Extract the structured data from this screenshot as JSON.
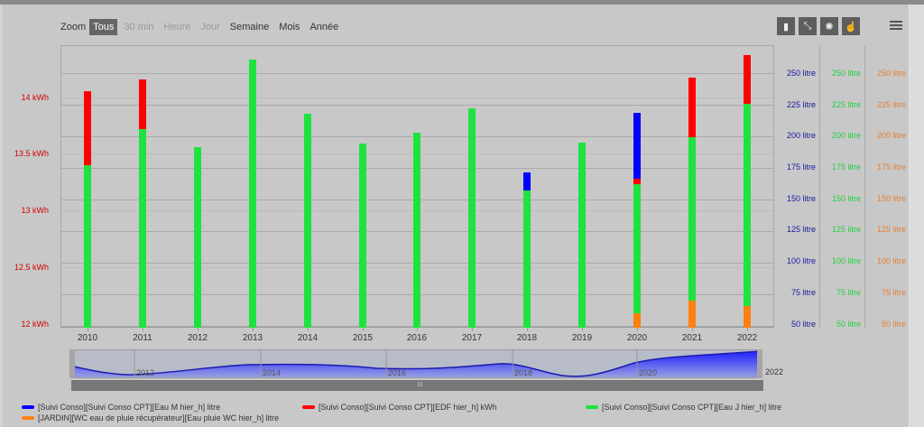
{
  "range_selector": {
    "label": "Zoom",
    "buttons": [
      {
        "label": "Tous",
        "state": "active"
      },
      {
        "label": "30 min",
        "state": "disabled"
      },
      {
        "label": "Heure",
        "state": "disabled"
      },
      {
        "label": "Jour",
        "state": "disabled"
      },
      {
        "label": "Semaine",
        "state": "normal"
      },
      {
        "label": "Mois",
        "state": "normal"
      },
      {
        "label": "Année",
        "state": "normal"
      }
    ]
  },
  "toolbar": {
    "icons": [
      "bar-icon",
      "scatter-icon",
      "sun-icon",
      "pointer-hand-icon"
    ],
    "glyphs": [
      "▮",
      "⤡",
      "✺",
      "☝"
    ],
    "menu_icon": "hamburger-menu-icon"
  },
  "colors": {
    "blue": "#0000ff",
    "red": "#ff0000",
    "green": "#1ee33e",
    "orange": "#ff8010",
    "axis_left": "#d40000",
    "axis_blue": "#1a1aa0",
    "axis_green": "#22d040",
    "axis_orange": "#e87f30"
  },
  "axes": {
    "left": [
      "14 kWh",
      "13.5 kWh",
      "13 kWh",
      "12.5 kWh",
      "12 kWh"
    ],
    "right_blue": [
      "250 litre",
      "225 litre",
      "200 litre",
      "175 litre",
      "150 litre",
      "125 litre",
      "100 litre",
      "75 litre",
      "50 litre"
    ],
    "right_green": [
      "250 litre",
      "225 litre",
      "200 litre",
      "175 litre",
      "150 litre",
      "125 litre",
      "100 litre",
      "75 litre",
      "50 litre"
    ],
    "right_orange": [
      "250 litre",
      "225 litre",
      "200 litre",
      "175 litre",
      "150 litre",
      "125 litre",
      "100 litre",
      "75 litre",
      "50 litre"
    ]
  },
  "navigator": {
    "labels": [
      "2012",
      "2014",
      "2016",
      "2018",
      "2020"
    ],
    "end_label": "2022",
    "grip": "III"
  },
  "legend": [
    {
      "label": "[Suivi Conso][Suivi Conso CPT][Eau M hier_h] litre",
      "color": "#0000ff"
    },
    {
      "label": "[Suivi Conso][Suivi Conso CPT][EDF hier_h] kWh",
      "color": "#ff0000"
    },
    {
      "label": "[Suivi Conso][Suivi Conso CPT][Eau J hier_h] litre",
      "color": "#1ee33e"
    },
    {
      "label": "[JARDIN][WC eau de pluie récupérateur][Eau pluie WC hier_h] litre",
      "color": "#ff8010"
    }
  ],
  "chart_data": {
    "type": "bar",
    "stacked_visual": true,
    "categories": [
      "2010",
      "2011",
      "2012",
      "2013",
      "2014",
      "2015",
      "2016",
      "2017",
      "2018",
      "2019",
      "2020",
      "2021",
      "2022"
    ],
    "series": [
      {
        "name": "[Suivi Conso][Suivi Conso CPT][Eau M hier_h] litre",
        "axis": "right_blue",
        "unit": "litre",
        "values": [
          null,
          null,
          null,
          null,
          null,
          null,
          null,
          null,
          171,
          null,
          219,
          null,
          null
        ]
      },
      {
        "name": "[Suivi Conso][Suivi Conso CPT][EDF hier_h] kWh",
        "axis": "left",
        "unit": "kWh",
        "values": [
          14.06,
          14.16,
          null,
          null,
          null,
          null,
          null,
          null,
          null,
          null,
          13.3,
          14.18,
          14.38
        ]
      },
      {
        "name": "[Suivi Conso][Suivi Conso CPT][Eau J hier_h] litre",
        "axis": "right_green",
        "unit": "litre",
        "values": [
          177,
          205,
          190,
          260,
          217,
          193,
          201,
          221,
          156,
          193,
          160,
          198,
          224
        ]
      },
      {
        "name": "[JARDIN][WC eau de pluie récupérateur][Eau pluie WC hier_h] litre",
        "axis": "right_orange",
        "unit": "litre",
        "values": [
          null,
          null,
          null,
          null,
          null,
          null,
          null,
          null,
          null,
          null,
          62,
          72,
          67
        ]
      }
    ],
    "pixel_stacks": [
      {
        "year": "2010",
        "segments": [
          {
            "c": "green",
            "from": 363,
            "to": 183
          },
          {
            "c": "red",
            "from": 183,
            "to": 101
          }
        ]
      },
      {
        "year": "2011",
        "segments": [
          {
            "c": "green",
            "from": 363,
            "to": 143
          },
          {
            "c": "red",
            "from": 143,
            "to": 88
          }
        ]
      },
      {
        "year": "2012",
        "segments": [
          {
            "c": "green",
            "from": 363,
            "to": 163
          }
        ]
      },
      {
        "year": "2013",
        "segments": [
          {
            "c": "green",
            "from": 363,
            "to": 66
          }
        ]
      },
      {
        "year": "2014",
        "segments": [
          {
            "c": "green",
            "from": 363,
            "to": 126
          }
        ]
      },
      {
        "year": "2015",
        "segments": [
          {
            "c": "green",
            "from": 363,
            "to": 159
          }
        ]
      },
      {
        "year": "2016",
        "segments": [
          {
            "c": "green",
            "from": 363,
            "to": 147
          }
        ]
      },
      {
        "year": "2017",
        "segments": [
          {
            "c": "green",
            "from": 363,
            "to": 120
          }
        ]
      },
      {
        "year": "2018",
        "segments": [
          {
            "c": "green",
            "from": 363,
            "to": 211
          },
          {
            "c": "blue",
            "from": 211,
            "to": 191
          }
        ]
      },
      {
        "year": "2019",
        "segments": [
          {
            "c": "green",
            "from": 363,
            "to": 158
          }
        ]
      },
      {
        "year": "2020",
        "segments": [
          {
            "c": "orange",
            "from": 363,
            "to": 347
          },
          {
            "c": "green",
            "from": 347,
            "to": 204
          },
          {
            "c": "red",
            "from": 204,
            "to": 198
          },
          {
            "c": "blue",
            "from": 198,
            "to": 125
          }
        ]
      },
      {
        "year": "2021",
        "segments": [
          {
            "c": "orange",
            "from": 363,
            "to": 333
          },
          {
            "c": "green",
            "from": 333,
            "to": 152
          },
          {
            "c": "red",
            "from": 152,
            "to": 86
          }
        ]
      },
      {
        "year": "2022",
        "segments": [
          {
            "c": "orange",
            "from": 363,
            "to": 339
          },
          {
            "c": "green",
            "from": 339,
            "to": 115
          },
          {
            "c": "red",
            "from": 115,
            "to": 61
          }
        ]
      }
    ],
    "title": "",
    "xlabel": "",
    "ylabel_left": "kWh",
    "ylabel_right": "litre",
    "ylim_left": [
      12,
      14.4
    ],
    "ylim_right": [
      50,
      260
    ],
    "grid": true,
    "legend_position": "bottom"
  }
}
